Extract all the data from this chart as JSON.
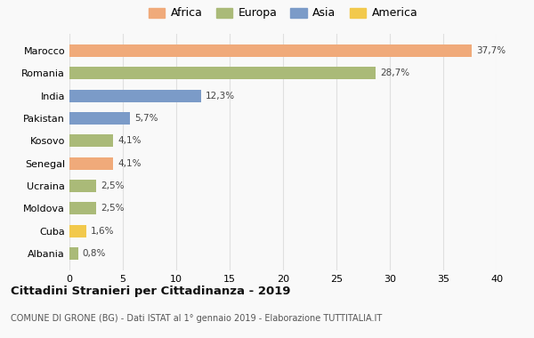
{
  "categories": [
    "Albania",
    "Cuba",
    "Moldova",
    "Ucraina",
    "Senegal",
    "Kosovo",
    "Pakistan",
    "India",
    "Romania",
    "Marocco"
  ],
  "values": [
    0.8,
    1.6,
    2.5,
    2.5,
    4.1,
    4.1,
    5.7,
    12.3,
    28.7,
    37.7
  ],
  "labels": [
    "0,8%",
    "1,6%",
    "2,5%",
    "2,5%",
    "4,1%",
    "4,1%",
    "5,7%",
    "12,3%",
    "28,7%",
    "37,7%"
  ],
  "colors": [
    "#aaba78",
    "#f2c94c",
    "#aaba78",
    "#aaba78",
    "#f0aa7a",
    "#aaba78",
    "#7b9bc8",
    "#7b9bc8",
    "#aaba78",
    "#f0aa7a"
  ],
  "legend_labels": [
    "Africa",
    "Europa",
    "Asia",
    "America"
  ],
  "legend_colors": [
    "#f0aa7a",
    "#aaba78",
    "#7b9bc8",
    "#f2c94c"
  ],
  "title": "Cittadini Stranieri per Cittadinanza - 2019",
  "subtitle": "COMUNE DI GRONE (BG) - Dati ISTAT al 1° gennaio 2019 - Elaborazione TUTTITALIA.IT",
  "xlim": [
    0,
    40
  ],
  "xticks": [
    0,
    5,
    10,
    15,
    20,
    25,
    30,
    35,
    40
  ],
  "background_color": "#f9f9f9",
  "grid_color": "#e0e0e0"
}
